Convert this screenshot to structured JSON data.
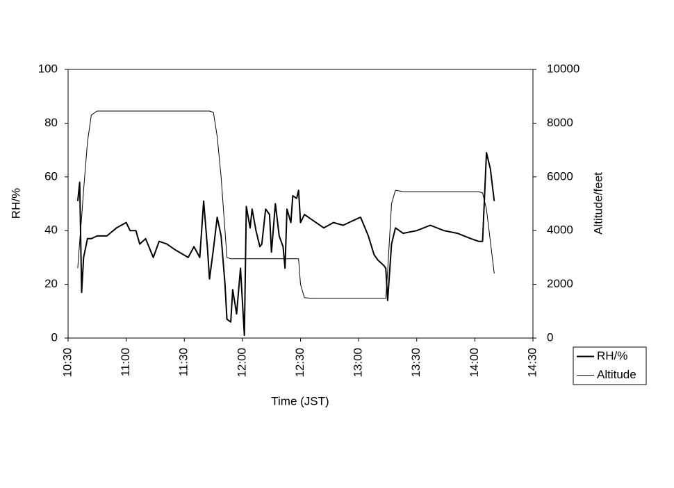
{
  "chart_data": {
    "type": "line",
    "x_label": "Time (JST)",
    "y_label": "RH/%",
    "y2_label": "Altitude/feet",
    "xlim": [
      "10:30",
      "14:30"
    ],
    "xticks": [
      "10:30",
      "11:00",
      "11:30",
      "12:00",
      "12:30",
      "13:00",
      "13:30",
      "14:00",
      "14:30"
    ],
    "ylim": [
      0,
      100
    ],
    "yticks": [
      0,
      20,
      40,
      60,
      80,
      100
    ],
    "y2lim": [
      0,
      10000
    ],
    "y2ticks": [
      0,
      2000,
      4000,
      6000,
      8000,
      10000
    ],
    "grid": false,
    "legend": "lower right",
    "x": [
      "10:35",
      "10:36",
      "10:37",
      "10:38",
      "10:40",
      "10:42",
      "10:45",
      "10:50",
      "10:55",
      "11:00",
      "11:02",
      "11:05",
      "11:07",
      "11:10",
      "11:14",
      "11:17",
      "11:21",
      "11:25",
      "11:32",
      "11:35",
      "11:38",
      "11:40",
      "11:42",
      "11:43",
      "11:45",
      "11:47",
      "11:49",
      "11:51",
      "11:52",
      "11:54",
      "11:55",
      "11:57",
      "11:59",
      "12:01",
      "12:02",
      "12:04",
      "12:05",
      "12:07",
      "12:09",
      "12:10",
      "12:12",
      "12:14",
      "12:15",
      "12:17",
      "12:19",
      "12:21",
      "12:22",
      "12:23",
      "12:25",
      "12:26",
      "12:28",
      "12:29",
      "12:30",
      "12:32",
      "12:36",
      "12:42",
      "12:47",
      "12:52",
      "12:58",
      "13:01",
      "13:05",
      "13:08",
      "13:10",
      "13:13",
      "13:14",
      "13:15",
      "13:17",
      "13:19",
      "13:23",
      "13:30",
      "13:37",
      "13:44",
      "13:51",
      "13:58",
      "14:02",
      "14:04",
      "14:06",
      "14:08",
      "14:10"
    ],
    "series": [
      {
        "name": "RH/%",
        "color": "#000000",
        "values": [
          51,
          58,
          17,
          30,
          37,
          37,
          38,
          38,
          41,
          43,
          40,
          40,
          35,
          37,
          30,
          36,
          35,
          33,
          30,
          34,
          30,
          51,
          33,
          22,
          33,
          45,
          38,
          20,
          7,
          6,
          18,
          9,
          26,
          1,
          49,
          41,
          48,
          40,
          34,
          35,
          48,
          46,
          32,
          50,
          38,
          34,
          26,
          48,
          43,
          53,
          52,
          55,
          43,
          46,
          44,
          41,
          43,
          42,
          44,
          45,
          38,
          31,
          29,
          27,
          26,
          14,
          35,
          41,
          39,
          40,
          42,
          40,
          39,
          37,
          36,
          36,
          69,
          63,
          51
        ]
      },
      {
        "name": "Altitude",
        "color": "#000000",
        "axis": "y2",
        "values": [
          2600,
          3600,
          4500,
          5500,
          7300,
          8300,
          8450,
          8450,
          8450,
          8450,
          8450,
          8450,
          8450,
          8450,
          8450,
          8450,
          8450,
          8450,
          8450,
          8450,
          8450,
          8450,
          8450,
          8450,
          8400,
          7500,
          6000,
          4000,
          3000,
          2950,
          2950,
          2950,
          2950,
          2950,
          2950,
          2950,
          2950,
          2950,
          2950,
          2950,
          2950,
          2950,
          2950,
          2950,
          2950,
          2950,
          2950,
          2950,
          2950,
          2950,
          2950,
          2950,
          2000,
          1500,
          1480,
          1480,
          1480,
          1480,
          1480,
          1480,
          1480,
          1480,
          1480,
          1480,
          1480,
          2500,
          5000,
          5500,
          5450,
          5450,
          5450,
          5450,
          5450,
          5450,
          5450,
          5400,
          4800,
          3600,
          2400
        ]
      }
    ]
  }
}
